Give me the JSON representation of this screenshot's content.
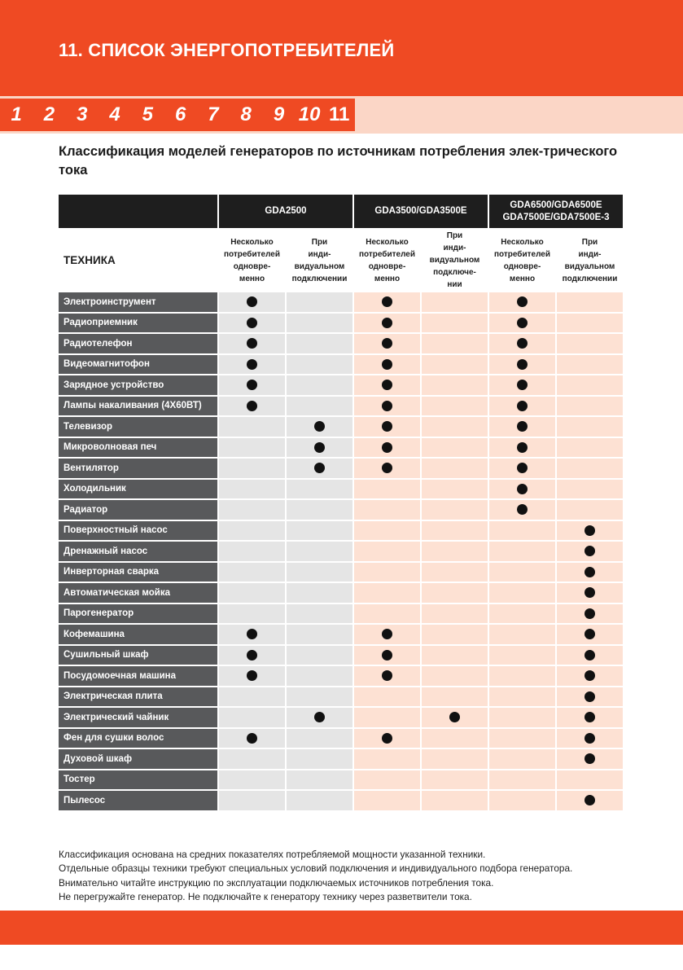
{
  "header": {
    "title": "11. СПИСОК ЭНЕРГОПОТРЕБИТЕЛЕЙ"
  },
  "nav": {
    "numbers": [
      "1",
      "2",
      "3",
      "4",
      "5",
      "6",
      "7",
      "8",
      "9",
      "10",
      "11"
    ],
    "active": "11"
  },
  "subtitle": "Классификация моделей генераторов по источникам потребления элек-трического тока",
  "table": {
    "tech_label": "ТЕХНИКА",
    "models": [
      "GDA2500",
      "GDA3500/GDA3500E",
      "GDA6500/GDA6500E GDA7500E/GDA7500E-3"
    ],
    "sub_headers": [
      "Несколько потребителей одновре-менно",
      "При инди-видуальном подключении",
      "Несколько потребителей одновре-менно",
      "При инди-видуальном подключе-нии",
      "Несколько потребителей одновре-менно",
      "При инди-видуальном подключении"
    ],
    "rows": [
      {
        "name": "Электроинструмент",
        "marks": [
          1,
          0,
          1,
          0,
          1,
          0
        ]
      },
      {
        "name": "Радиоприемник",
        "marks": [
          1,
          0,
          1,
          0,
          1,
          0
        ]
      },
      {
        "name": "Радиотелефон",
        "marks": [
          1,
          0,
          1,
          0,
          1,
          0
        ]
      },
      {
        "name": "Видеомагнитофон",
        "marks": [
          1,
          0,
          1,
          0,
          1,
          0
        ]
      },
      {
        "name": "Зарядное устройство",
        "marks": [
          1,
          0,
          1,
          0,
          1,
          0
        ]
      },
      {
        "name": "Лампы накаливания (4Х60ВТ)",
        "marks": [
          1,
          0,
          1,
          0,
          1,
          0
        ]
      },
      {
        "name": "Телевизор",
        "marks": [
          0,
          1,
          1,
          0,
          1,
          0
        ]
      },
      {
        "name": "Микроволновая печ",
        "marks": [
          0,
          1,
          1,
          0,
          1,
          0
        ]
      },
      {
        "name": "Вентилятор",
        "marks": [
          0,
          1,
          1,
          0,
          1,
          0
        ]
      },
      {
        "name": "Холодильник",
        "marks": [
          0,
          0,
          0,
          0,
          1,
          0
        ]
      },
      {
        "name": "Радиатор",
        "marks": [
          0,
          0,
          0,
          0,
          1,
          0
        ]
      },
      {
        "name": "Поверхностный насос",
        "marks": [
          0,
          0,
          0,
          0,
          0,
          1
        ]
      },
      {
        "name": "Дренажный насос",
        "marks": [
          0,
          0,
          0,
          0,
          0,
          1
        ]
      },
      {
        "name": "Инверторная сварка",
        "marks": [
          0,
          0,
          0,
          0,
          0,
          1
        ]
      },
      {
        "name": "Автоматическая мойка",
        "marks": [
          0,
          0,
          0,
          0,
          0,
          1
        ]
      },
      {
        "name": "Парогенератор",
        "marks": [
          0,
          0,
          0,
          0,
          0,
          1
        ]
      },
      {
        "name": "Кофемашина",
        "marks": [
          1,
          0,
          1,
          0,
          0,
          1
        ]
      },
      {
        "name": "Сушильный шкаф",
        "marks": [
          1,
          0,
          1,
          0,
          0,
          1
        ]
      },
      {
        "name": "Посудомоечная машина",
        "marks": [
          1,
          0,
          1,
          0,
          0,
          1
        ]
      },
      {
        "name": "Электрическая плита",
        "marks": [
          0,
          0,
          0,
          0,
          0,
          1
        ]
      },
      {
        "name": "Электрический чайник",
        "marks": [
          0,
          1,
          0,
          1,
          0,
          1
        ]
      },
      {
        "name": "Фен для сушки волос",
        "marks": [
          1,
          0,
          1,
          0,
          0,
          1
        ]
      },
      {
        "name": "Духовой шкаф",
        "marks": [
          0,
          0,
          0,
          0,
          0,
          1
        ]
      },
      {
        "name": "Тостер",
        "marks": [
          0,
          0,
          0,
          0,
          0,
          0
        ]
      },
      {
        "name": "Пылесос",
        "marks": [
          0,
          0,
          0,
          0,
          0,
          1
        ]
      }
    ]
  },
  "footer_notes": [
    "Классификация основана на средних показателях потребляемой мощности указанной техники.",
    "Отдельные образцы техники требуют специальных условий подключения и индивидуального подбора генератора.",
    "Внимательно читайте инструкцию по эксплуатации подключаемых источников потребления тока.",
    "Не перегружайте генератор. Не подключайте к генератору технику через разветвители тока."
  ],
  "colors": {
    "accent": "#ef4a23",
    "nav_strip": "#fbd6c6",
    "label_bg": "#58595b",
    "cell_gray": "#e5e5e5",
    "cell_peach": "#fde1d3"
  }
}
